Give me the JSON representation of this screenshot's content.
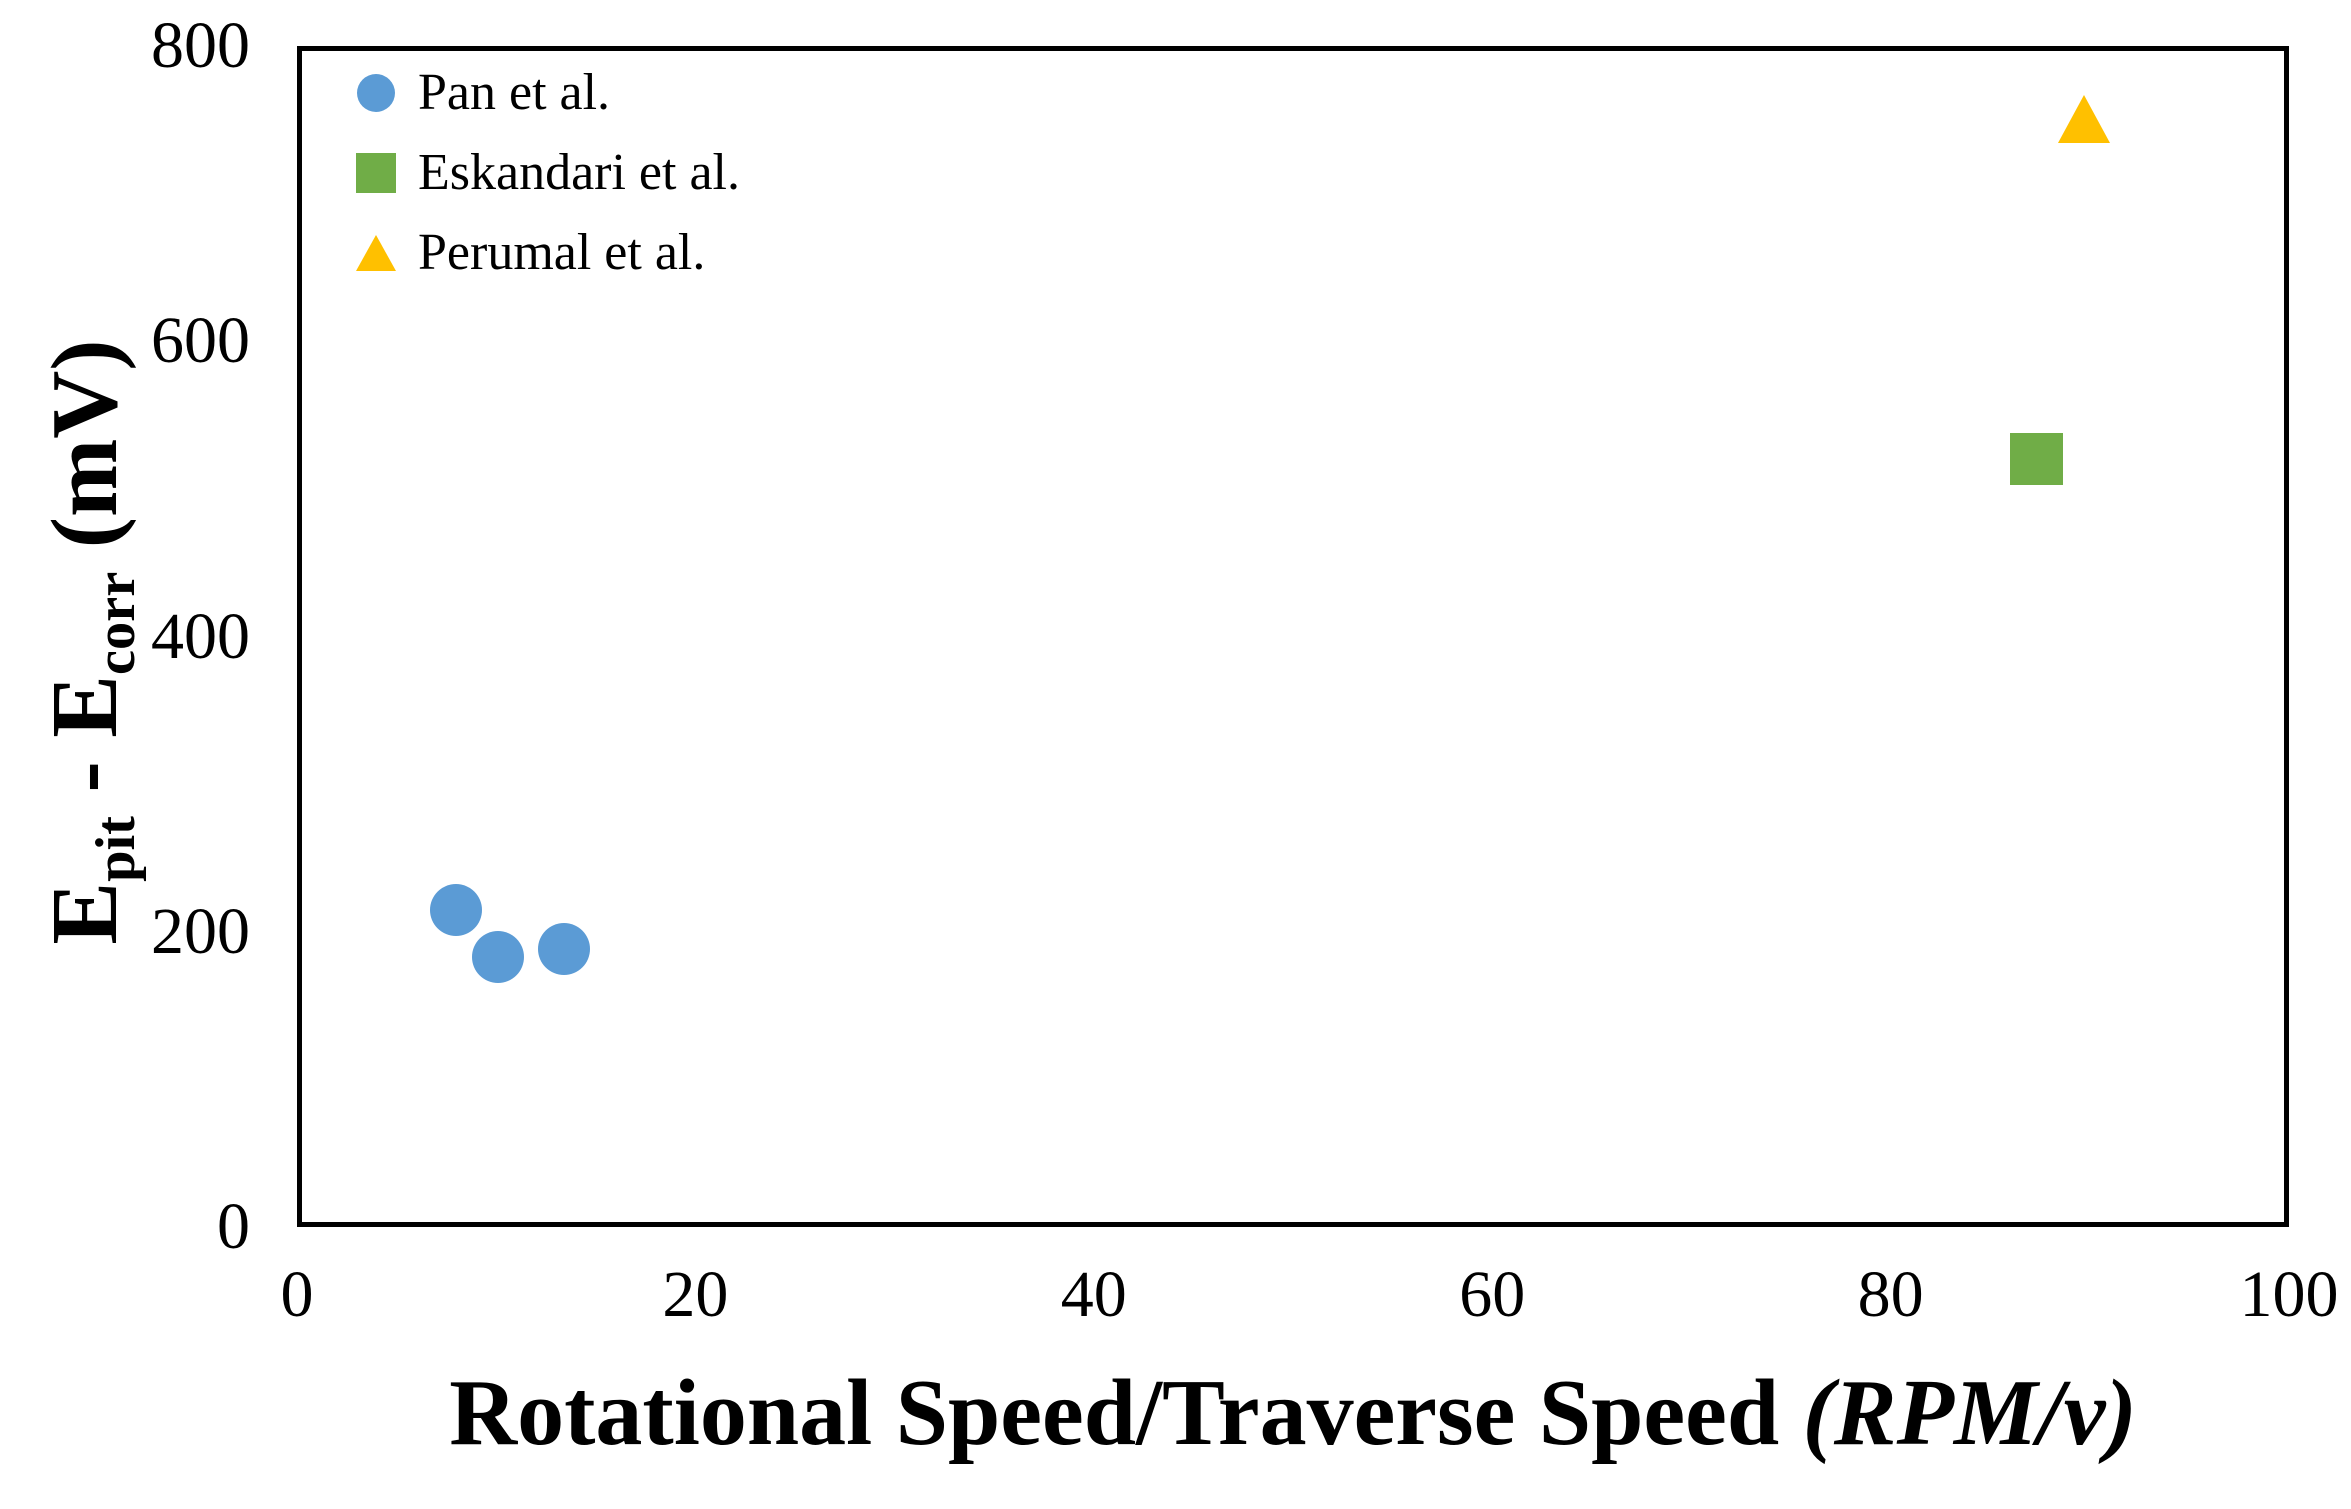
{
  "figure": {
    "background": "#ffffff",
    "axis_border_color": "#000000",
    "text_color": "#000000"
  },
  "chart_data": {
    "type": "scatter",
    "title": "",
    "grid": false,
    "legend_position": "inside-top-left",
    "xlim": [
      0,
      100
    ],
    "ylim": [
      0,
      800
    ],
    "xticks": [
      "0",
      "20",
      "40",
      "60",
      "80",
      "100"
    ],
    "yticks": [
      "0",
      "200",
      "400",
      "600",
      "800"
    ],
    "xlabel": "Rotational Speed/Traverse Speed (RPM/v)",
    "xlabel_parts": [
      {
        "t": "Rotational Speed/Traverse Speed ",
        "style": "normal"
      },
      {
        "t": "(RPM/v)",
        "style": "italic"
      }
    ],
    "ylabel": "Epit - Ecorr (mV)",
    "ylabel_parts": [
      {
        "t": "E",
        "style": "normal"
      },
      {
        "t": "pit",
        "style": "sub"
      },
      {
        "t": " - E",
        "style": "normal"
      },
      {
        "t": "corr",
        "style": "sub"
      },
      {
        "t": " (mV)",
        "style": "normal"
      }
    ],
    "series": [
      {
        "name": "Pan et al.",
        "marker": "circle",
        "color": "#5B9BD5",
        "points": [
          [
            8,
            215
          ],
          [
            10.1,
            183
          ],
          [
            13.4,
            188
          ]
        ]
      },
      {
        "name": "Eskandari et al.",
        "marker": "square",
        "color": "#70AD47",
        "points": [
          [
            87.3,
            520
          ]
        ]
      },
      {
        "name": "Perumal et al.",
        "marker": "triangle",
        "color": "#FFC000",
        "points": [
          [
            89.7,
            750
          ]
        ]
      }
    ]
  }
}
